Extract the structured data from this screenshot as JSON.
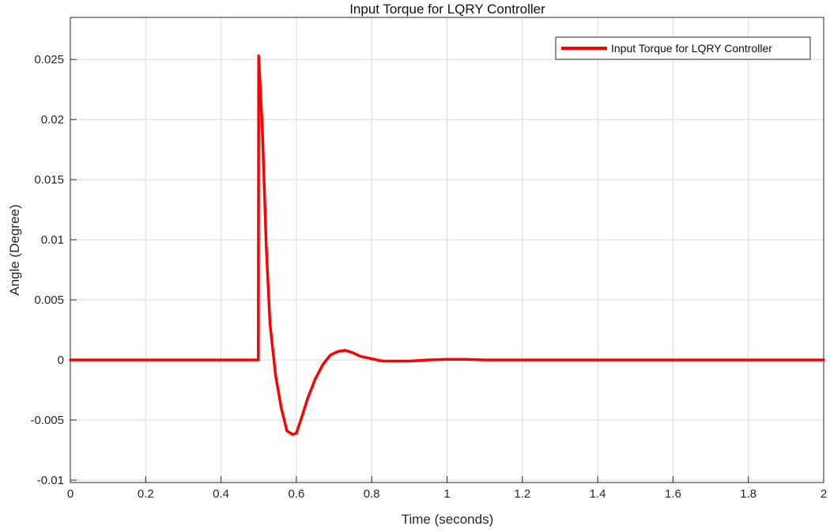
{
  "chart_data": {
    "type": "line",
    "title": "Input Torque for LQRY Controller",
    "xlabel": "Time (seconds)",
    "ylabel": "Angle (Degree)",
    "xlim": [
      0,
      2
    ],
    "ylim": [
      -0.0102,
      0.0285
    ],
    "grid": true,
    "legend_position": "top-right",
    "x_ticks": [
      0,
      0.2,
      0.4,
      0.6,
      0.8,
      1,
      1.2,
      1.4,
      1.6,
      1.8,
      2
    ],
    "x_tick_labels": [
      "0",
      "0.2",
      "0.4",
      "0.6",
      "0.8",
      "1",
      "1.2",
      "1.4",
      "1.6",
      "1.8",
      "2"
    ],
    "y_ticks": [
      -0.01,
      -0.005,
      0,
      0.005,
      0.01,
      0.015,
      0.02,
      0.025
    ],
    "y_tick_labels": [
      "-0.01",
      "-0.005",
      "0",
      "0.005",
      "0.01",
      "0.015",
      "0.02",
      "0.025"
    ],
    "series": [
      {
        "name": "Input Torque for LQRY Controller",
        "color": "#ff0000",
        "x": [
          0,
          0.499,
          0.5,
          0.51,
          0.52,
          0.53,
          0.545,
          0.56,
          0.575,
          0.59,
          0.6,
          0.615,
          0.63,
          0.65,
          0.67,
          0.69,
          0.71,
          0.73,
          0.75,
          0.77,
          0.8,
          0.83,
          0.86,
          0.9,
          0.95,
          1.0,
          1.05,
          1.1,
          1.2,
          1.5,
          2.0
        ],
        "y": [
          0,
          0,
          0.0253,
          0.019,
          0.0095,
          0.003,
          -0.0013,
          -0.004,
          -0.0059,
          -0.0062,
          -0.0061,
          -0.0047,
          -0.0032,
          -0.0016,
          -0.0004,
          0.0004,
          0.0007,
          0.0008,
          0.0006,
          0.0003,
          0.0001,
          -0.0001,
          -0.0001,
          -0.0001,
          0,
          5e-05,
          5e-05,
          0,
          0,
          0,
          0
        ]
      }
    ]
  }
}
